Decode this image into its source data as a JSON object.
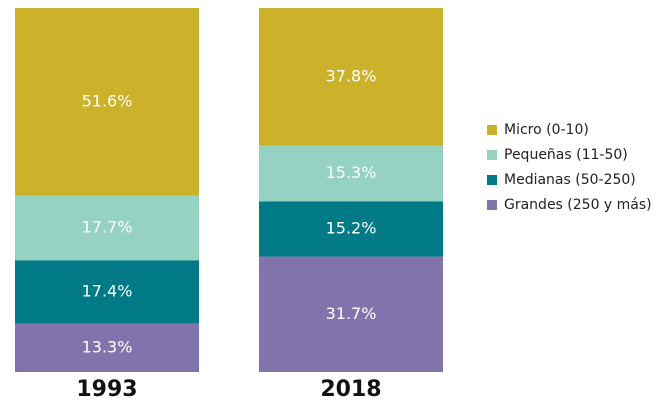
{
  "chart_data": {
    "type": "stacked_bar",
    "categories": [
      "1993",
      "2018"
    ],
    "series": [
      {
        "name": "Micro (0-10)",
        "color": "#ccb22b",
        "values": [
          51.6,
          37.8
        ],
        "value_labels": [
          "51.6%",
          "37.8%"
        ]
      },
      {
        "name": "Pequeñas (11-50)",
        "color": "#95d2c1",
        "values": [
          17.7,
          15.3
        ],
        "value_labels": [
          "17.7%",
          "15.3%"
        ]
      },
      {
        "name": "Medianas (50-250)",
        "color": "#017a87",
        "values": [
          17.4,
          15.2
        ],
        "value_labels": [
          "17.4%",
          "15.2%"
        ]
      },
      {
        "name": "Grandes (250 y más)",
        "color": "#8174ad",
        "values": [
          13.3,
          31.7
        ],
        "value_labels": [
          "13.3%",
          "31.7%"
        ]
      }
    ]
  }
}
